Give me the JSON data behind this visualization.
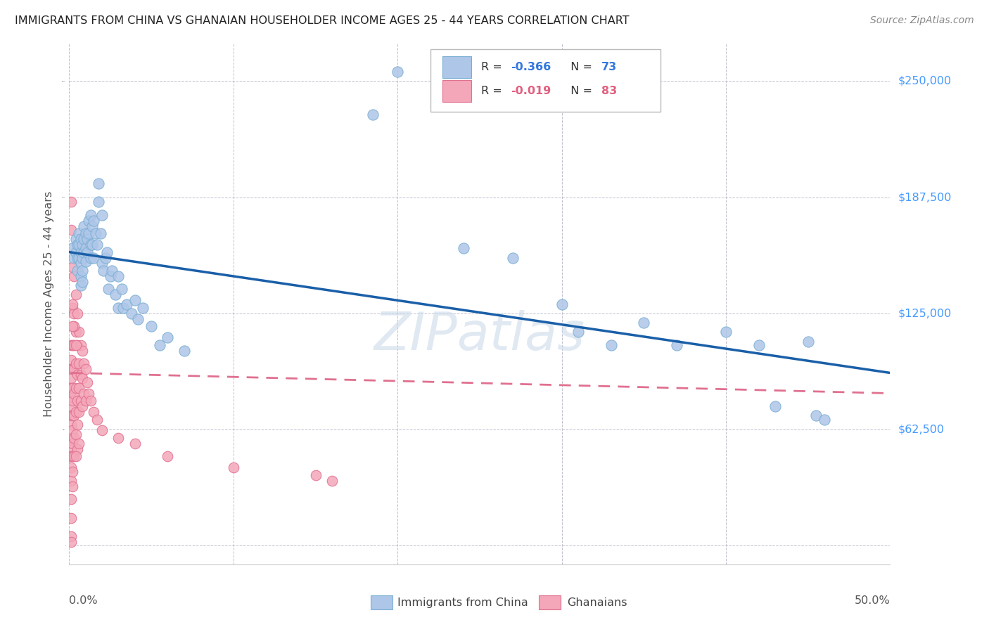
{
  "title": "IMMIGRANTS FROM CHINA VS GHANAIAN HOUSEHOLDER INCOME AGES 25 - 44 YEARS CORRELATION CHART",
  "source": "Source: ZipAtlas.com",
  "ylabel": "Householder Income Ages 25 - 44 years",
  "ytick_labels": [
    "$62,500",
    "$125,000",
    "$187,500",
    "$250,000"
  ],
  "ytick_values": [
    62500,
    125000,
    187500,
    250000
  ],
  "ymin": -10000,
  "ymax": 270000,
  "xmin": 0.0,
  "xmax": 0.5,
  "china_color": "#aec6e8",
  "ghana_color": "#f4a7b9",
  "china_edge": "#7bafd4",
  "ghana_edge": "#e07090",
  "trendline_china_color": "#1a5fa8",
  "trendline_ghana_color": "#e07090",
  "watermark": "ZIPatlas",
  "china_points": [
    [
      0.002,
      160000
    ],
    [
      0.003,
      155000
    ],
    [
      0.004,
      165000
    ],
    [
      0.004,
      158000
    ],
    [
      0.005,
      162000
    ],
    [
      0.005,
      155000
    ],
    [
      0.005,
      148000
    ],
    [
      0.006,
      168000
    ],
    [
      0.006,
      162000
    ],
    [
      0.006,
      155000
    ],
    [
      0.007,
      165000
    ],
    [
      0.007,
      158000
    ],
    [
      0.007,
      152000
    ],
    [
      0.007,
      145000
    ],
    [
      0.007,
      140000
    ],
    [
      0.008,
      162000
    ],
    [
      0.008,
      155000
    ],
    [
      0.008,
      148000
    ],
    [
      0.008,
      142000
    ],
    [
      0.009,
      172000
    ],
    [
      0.009,
      165000
    ],
    [
      0.009,
      158000
    ],
    [
      0.01,
      168000
    ],
    [
      0.01,
      160000
    ],
    [
      0.01,
      153000
    ],
    [
      0.011,
      165000
    ],
    [
      0.011,
      158000
    ],
    [
      0.012,
      175000
    ],
    [
      0.012,
      168000
    ],
    [
      0.013,
      178000
    ],
    [
      0.013,
      162000
    ],
    [
      0.013,
      155000
    ],
    [
      0.014,
      172000
    ],
    [
      0.014,
      162000
    ],
    [
      0.015,
      175000
    ],
    [
      0.015,
      155000
    ],
    [
      0.016,
      168000
    ],
    [
      0.017,
      162000
    ],
    [
      0.018,
      195000
    ],
    [
      0.018,
      185000
    ],
    [
      0.019,
      168000
    ],
    [
      0.02,
      178000
    ],
    [
      0.02,
      152000
    ],
    [
      0.021,
      148000
    ],
    [
      0.022,
      155000
    ],
    [
      0.023,
      158000
    ],
    [
      0.024,
      138000
    ],
    [
      0.025,
      145000
    ],
    [
      0.026,
      148000
    ],
    [
      0.028,
      135000
    ],
    [
      0.03,
      145000
    ],
    [
      0.03,
      128000
    ],
    [
      0.032,
      138000
    ],
    [
      0.033,
      128000
    ],
    [
      0.035,
      130000
    ],
    [
      0.038,
      125000
    ],
    [
      0.04,
      132000
    ],
    [
      0.042,
      122000
    ],
    [
      0.045,
      128000
    ],
    [
      0.05,
      118000
    ],
    [
      0.055,
      108000
    ],
    [
      0.06,
      112000
    ],
    [
      0.07,
      105000
    ],
    [
      0.2,
      255000
    ],
    [
      0.185,
      232000
    ],
    [
      0.24,
      160000
    ],
    [
      0.27,
      155000
    ],
    [
      0.3,
      130000
    ],
    [
      0.31,
      115000
    ],
    [
      0.33,
      108000
    ],
    [
      0.35,
      120000
    ],
    [
      0.37,
      108000
    ],
    [
      0.4,
      115000
    ],
    [
      0.42,
      108000
    ],
    [
      0.43,
      75000
    ],
    [
      0.45,
      110000
    ],
    [
      0.455,
      70000
    ],
    [
      0.46,
      68000
    ]
  ],
  "ghana_points": [
    [
      0.001,
      185000
    ],
    [
      0.001,
      170000
    ],
    [
      0.001,
      108000
    ],
    [
      0.001,
      100000
    ],
    [
      0.001,
      95000
    ],
    [
      0.001,
      90000
    ],
    [
      0.001,
      85000
    ],
    [
      0.001,
      80000
    ],
    [
      0.001,
      75000
    ],
    [
      0.001,
      70000
    ],
    [
      0.001,
      65000
    ],
    [
      0.001,
      58000
    ],
    [
      0.001,
      52000
    ],
    [
      0.001,
      48000
    ],
    [
      0.001,
      42000
    ],
    [
      0.001,
      35000
    ],
    [
      0.001,
      25000
    ],
    [
      0.001,
      15000
    ],
    [
      0.001,
      5000
    ],
    [
      0.001,
      2000
    ],
    [
      0.002,
      150000
    ],
    [
      0.002,
      128000
    ],
    [
      0.002,
      108000
    ],
    [
      0.002,
      95000
    ],
    [
      0.002,
      85000
    ],
    [
      0.002,
      78000
    ],
    [
      0.002,
      70000
    ],
    [
      0.002,
      62000
    ],
    [
      0.002,
      55000
    ],
    [
      0.002,
      48000
    ],
    [
      0.002,
      40000
    ],
    [
      0.002,
      32000
    ],
    [
      0.003,
      145000
    ],
    [
      0.003,
      125000
    ],
    [
      0.003,
      108000
    ],
    [
      0.003,
      95000
    ],
    [
      0.003,
      82000
    ],
    [
      0.003,
      70000
    ],
    [
      0.003,
      58000
    ],
    [
      0.003,
      48000
    ],
    [
      0.004,
      135000
    ],
    [
      0.004,
      115000
    ],
    [
      0.004,
      98000
    ],
    [
      0.004,
      85000
    ],
    [
      0.004,
      72000
    ],
    [
      0.004,
      60000
    ],
    [
      0.005,
      125000
    ],
    [
      0.005,
      108000
    ],
    [
      0.005,
      92000
    ],
    [
      0.005,
      78000
    ],
    [
      0.005,
      65000
    ],
    [
      0.005,
      52000
    ],
    [
      0.006,
      115000
    ],
    [
      0.006,
      98000
    ],
    [
      0.006,
      85000
    ],
    [
      0.006,
      72000
    ],
    [
      0.007,
      108000
    ],
    [
      0.007,
      92000
    ],
    [
      0.007,
      78000
    ],
    [
      0.008,
      105000
    ],
    [
      0.008,
      90000
    ],
    [
      0.008,
      75000
    ],
    [
      0.009,
      98000
    ],
    [
      0.009,
      82000
    ],
    [
      0.01,
      95000
    ],
    [
      0.01,
      78000
    ],
    [
      0.011,
      88000
    ],
    [
      0.012,
      82000
    ],
    [
      0.013,
      78000
    ],
    [
      0.015,
      72000
    ],
    [
      0.017,
      68000
    ],
    [
      0.02,
      62000
    ],
    [
      0.03,
      58000
    ],
    [
      0.04,
      55000
    ],
    [
      0.06,
      48000
    ],
    [
      0.1,
      42000
    ],
    [
      0.15,
      38000
    ],
    [
      0.16,
      35000
    ],
    [
      0.002,
      130000
    ],
    [
      0.003,
      118000
    ],
    [
      0.002,
      118000
    ],
    [
      0.004,
      108000
    ],
    [
      0.004,
      48000
    ],
    [
      0.006,
      55000
    ]
  ]
}
